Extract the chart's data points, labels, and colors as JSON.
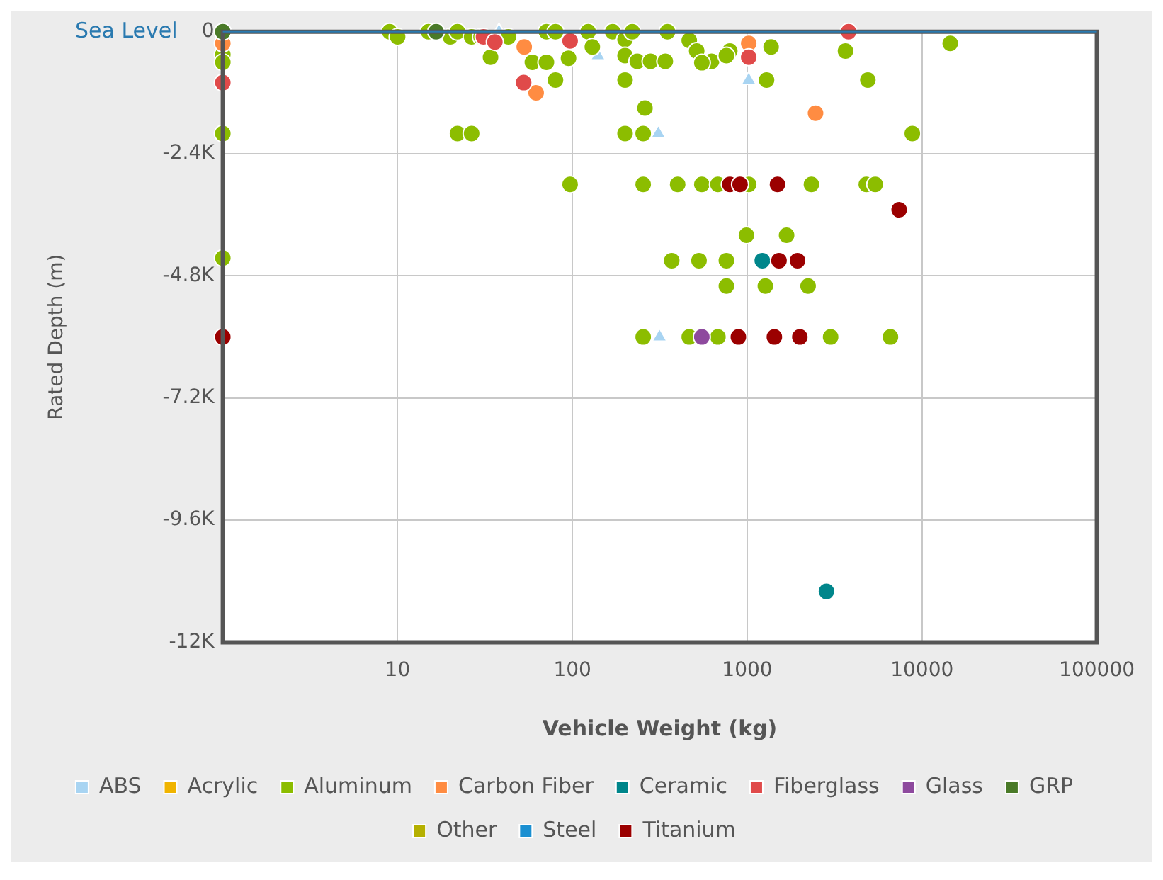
{
  "chart_data": {
    "type": "scatter",
    "xlabel": "Vehicle Weight (kg)",
    "ylabel": "Rated Depth (m)",
    "log": "x",
    "grid": true,
    "legend": "bottom",
    "marker": "circle",
    "xlim": [
      1,
      100000
    ],
    "xticks": [
      10,
      100,
      1000,
      10000,
      100000
    ],
    "ylim": [
      -12000,
      0
    ],
    "yticks": [
      {
        "value": -12000,
        "label": "-12K"
      },
      {
        "value": -9600,
        "label": "-9.6K"
      },
      {
        "value": -7200,
        "label": "-7.2K"
      },
      {
        "value": -4800,
        "label": "-4.8K"
      },
      {
        "value": -2400,
        "label": "-2.4K"
      },
      0
    ],
    "ref_lines": [
      {
        "axis": "y",
        "value": 0,
        "label": "Sea Level",
        "color": "#2a7ab0"
      }
    ],
    "series": [
      {
        "name": "ABS",
        "color": "#a8d4f2",
        "marker": "triangle",
        "x": [
          38,
          140,
          1020,
          310,
          315
        ],
        "values": [
          0,
          -470,
          -950,
          -2000,
          -6000
        ]
      },
      {
        "name": "Acrylic",
        "color": "#f0b400"
      },
      {
        "name": "Aluminum",
        "color": "#8cbd00",
        "x": [
          1,
          1,
          1,
          1,
          9,
          10,
          15,
          20,
          22,
          26.5,
          30,
          43,
          34,
          59,
          71,
          80,
          95,
          71,
          80,
          123,
          130,
          22,
          26.5,
          200,
          254,
          170,
          200,
          220,
          200,
          200,
          260,
          235,
          280,
          340,
          350,
          466,
          514,
          625,
          795,
          550,
          760,
          1290,
          1370,
          3650,
          14500,
          4900,
          8800,
          97,
          254,
          400,
          550,
          680,
          1020,
          2330,
          4800,
          5400,
          990,
          1680,
          370,
          530,
          760,
          760,
          1270,
          2230,
          254,
          466,
          680,
          3000,
          6600
        ],
        "values": [
          -450,
          -600,
          -2000,
          -4450,
          0,
          -100,
          0,
          -100,
          0,
          -100,
          -100,
          -100,
          -500,
          -600,
          -600,
          -950,
          -520,
          0,
          0,
          0,
          -300,
          -2000,
          -2000,
          -2000,
          -2000,
          0,
          -150,
          0,
          -470,
          -950,
          -1500,
          -580,
          -580,
          -580,
          0,
          -170,
          -380,
          -580,
          -380,
          -610,
          -470,
          -950,
          -300,
          -380,
          -230,
          -950,
          -2000,
          -3000,
          -3000,
          -3000,
          -3000,
          -3000,
          -3000,
          -3000,
          -3000,
          -3000,
          -4000,
          -4000,
          -4500,
          -4500,
          -4500,
          -5000,
          -5000,
          -5000,
          -6000,
          -6000,
          -6000,
          -6000,
          -6000
        ]
      },
      {
        "name": "Carbon Fiber",
        "color": "#ff8c42",
        "x": [
          1,
          53,
          62,
          1020,
          2460
        ],
        "values": [
          -230,
          -300,
          -1200,
          -230,
          -1600
        ]
      },
      {
        "name": "Ceramic",
        "color": "#00868b",
        "x": [
          1220,
          2840
        ],
        "values": [
          -4500,
          -11000
        ]
      },
      {
        "name": "Fiberglass",
        "color": "#e04a4a",
        "x": [
          1,
          31,
          36,
          52.6,
          97,
          1020,
          3800
        ],
        "values": [
          -1000,
          -100,
          -200,
          -1000,
          -180,
          -500,
          0
        ]
      },
      {
        "name": "Glass",
        "color": "#8e4a9e",
        "x": [
          550
        ],
        "values": [
          -6000
        ]
      },
      {
        "name": "GRP",
        "color": "#4a7a28",
        "x": [
          1,
          16.6
        ],
        "values": [
          0,
          0
        ]
      },
      {
        "name": "Other",
        "color": "#b5b000"
      },
      {
        "name": "Steel",
        "color": "#1a8fd1"
      },
      {
        "name": "Titanium",
        "color": "#9b0000",
        "x": [
          1,
          795,
          910,
          1490,
          7400,
          1520,
          1940,
          890,
          1430,
          2000
        ],
        "values": [
          -6000,
          -3000,
          -3000,
          -3000,
          -3500,
          -4500,
          -4500,
          -6000,
          -6000,
          -6000
        ]
      }
    ]
  }
}
